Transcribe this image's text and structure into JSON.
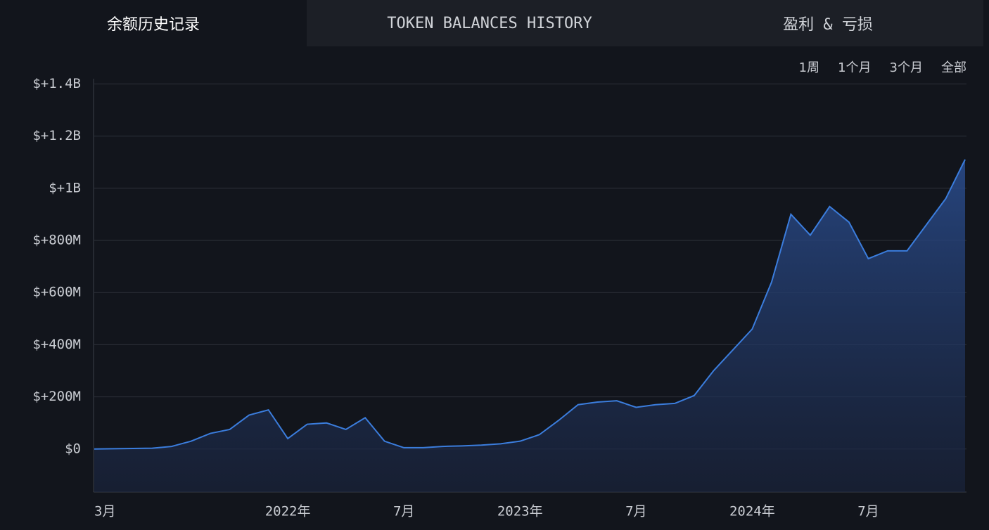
{
  "tabs": [
    "余额历史记录",
    "TOKEN BALANCES HISTORY",
    "盈利 & 亏损"
  ],
  "ranges": [
    "1周",
    "1个月",
    "3个月",
    "全部"
  ],
  "chart_data": {
    "type": "area",
    "categories": [
      "3月",
      null,
      null,
      null,
      null,
      null,
      null,
      null,
      null,
      null,
      "2022年",
      null,
      null,
      null,
      null,
      null,
      "7月",
      null,
      null,
      null,
      null,
      null,
      "2023年",
      null,
      null,
      null,
      null,
      null,
      "7月",
      null,
      null,
      null,
      null,
      null,
      "2024年",
      null,
      null,
      null,
      null,
      null,
      "7月",
      null,
      null,
      null,
      null,
      null
    ],
    "series": [
      {
        "color": "#3b7ddd",
        "values": [
          0,
          1000000,
          2000000,
          3000000,
          10000000,
          30000000,
          60000000,
          75000000,
          130000000,
          150000000,
          40000000,
          95000000,
          100000000,
          75000000,
          120000000,
          30000000,
          5000000,
          5000000,
          10000000,
          12000000,
          15000000,
          20000000,
          30000000,
          55000000,
          110000000,
          170000000,
          180000000,
          185000000,
          160000000,
          170000000,
          175000000,
          205000000,
          300000000,
          380000000,
          460000000,
          640000000,
          900000000,
          820000000,
          930000000,
          870000000,
          730000000,
          760000000,
          760000000,
          860000000,
          960000000,
          1110000000
        ]
      }
    ],
    "ylim": [
      -165000000,
      1420000000
    ],
    "yticks": [
      {
        "value": 0,
        "label": "$0"
      },
      {
        "value": 200000000,
        "label": "$+200M"
      },
      {
        "value": 400000000,
        "label": "$+400M"
      },
      {
        "value": 600000000,
        "label": "$+600M"
      },
      {
        "value": 800000000,
        "label": "$+800M"
      },
      {
        "value": 1000000000,
        "label": "$+1B"
      },
      {
        "value": 1200000000,
        "label": "$+1.2B"
      },
      {
        "value": 1400000000,
        "label": "$+1.4B"
      }
    ],
    "grid": true
  }
}
